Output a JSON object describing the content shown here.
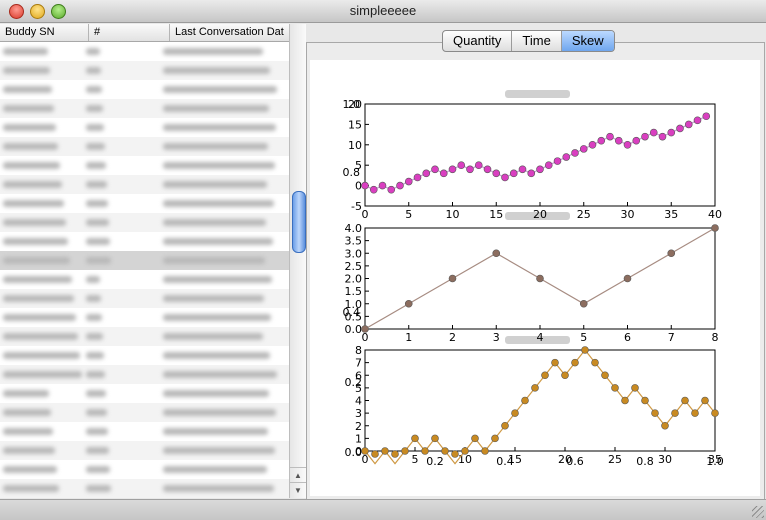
{
  "window": {
    "title": "simpleeeee"
  },
  "table": {
    "columns": [
      "Buddy SN",
      "#",
      "Last Conversation Dat"
    ],
    "row_count": 24,
    "selected_row": 11
  },
  "tabs": [
    {
      "label": "Quantity",
      "active": false
    },
    {
      "label": "Time",
      "active": false
    },
    {
      "label": "Skew",
      "active": true
    }
  ],
  "chart_data": [
    {
      "type": "line",
      "marker_color": "#d93fc0",
      "line_color": "#c79ad1",
      "x": [
        0,
        1,
        2,
        3,
        4,
        5,
        6,
        7,
        8,
        9,
        10,
        11,
        12,
        13,
        14,
        15,
        16,
        17,
        18,
        19,
        20,
        21,
        22,
        23,
        24,
        25,
        26,
        27,
        28,
        29,
        30,
        31,
        32,
        33,
        34,
        35,
        36,
        37,
        38,
        39
      ],
      "y": [
        0,
        -1,
        0,
        -1,
        0,
        1,
        2,
        3,
        4,
        3,
        4,
        5,
        4,
        5,
        4,
        3,
        2,
        3,
        4,
        3,
        4,
        5,
        6,
        7,
        8,
        9,
        10,
        11,
        12,
        11,
        10,
        11,
        12,
        13,
        12,
        13,
        14,
        15,
        16,
        17
      ],
      "xlim": [
        0,
        40
      ],
      "ylim": [
        -5,
        20
      ],
      "xticks": [
        "0",
        "5",
        "10",
        "15",
        "20",
        "25",
        "30",
        "35",
        "40"
      ],
      "yticks": [
        "-5",
        "0",
        "5",
        "10",
        "15",
        "20"
      ],
      "overlay_ticks": [
        "0.8",
        "1.0"
      ]
    },
    {
      "type": "line",
      "marker_color": "#8c6d5f",
      "line_color": "#a78c82",
      "x": [
        0,
        1,
        2,
        3,
        4,
        5,
        6,
        7,
        8
      ],
      "y": [
        0,
        1,
        2,
        3,
        2,
        1,
        2,
        3,
        4
      ],
      "xlim": [
        0,
        8
      ],
      "ylim": [
        0,
        4
      ],
      "xticks": [
        "0",
        "1",
        "2",
        "3",
        "4",
        "5",
        "6",
        "7",
        "8"
      ],
      "yticks": [
        "0.0",
        "0.5",
        "1.0",
        "1.5",
        "2.0",
        "2.5",
        "3.0",
        "3.5",
        "4.0"
      ],
      "overlay_ticks": [
        "0.4"
      ]
    },
    {
      "type": "line",
      "marker_color": "#c88a22",
      "line_color": "#cf9a46",
      "x": [
        0,
        1,
        2,
        3,
        4,
        5,
        6,
        7,
        8,
        9,
        10,
        11,
        12,
        13,
        14,
        15,
        16,
        17,
        18,
        19,
        20,
        21,
        22,
        23,
        24,
        25,
        26,
        27,
        28,
        29,
        30,
        31,
        32,
        33,
        34,
        35
      ],
      "y": [
        0,
        -1,
        0,
        -1,
        0,
        1,
        0,
        1,
        0,
        -1,
        0,
        1,
        0,
        1,
        2,
        3,
        4,
        5,
        6,
        7,
        6,
        7,
        8,
        7,
        6,
        5,
        4,
        5,
        4,
        3,
        2,
        3,
        4,
        3,
        4,
        3
      ],
      "xlim": [
        0,
        35
      ],
      "ylim": [
        0,
        8
      ],
      "xticks": [
        "0",
        "5",
        "10",
        "15",
        "20",
        "25",
        "30",
        "35"
      ],
      "yticks": [
        "0",
        "1",
        "2",
        "3",
        "4",
        "5",
        "6",
        "7",
        "8"
      ],
      "overlay_ticks": [
        "0.2",
        "0.4",
        "0.6",
        "0.8",
        "1.0",
        "0.0",
        "0.2"
      ]
    }
  ]
}
